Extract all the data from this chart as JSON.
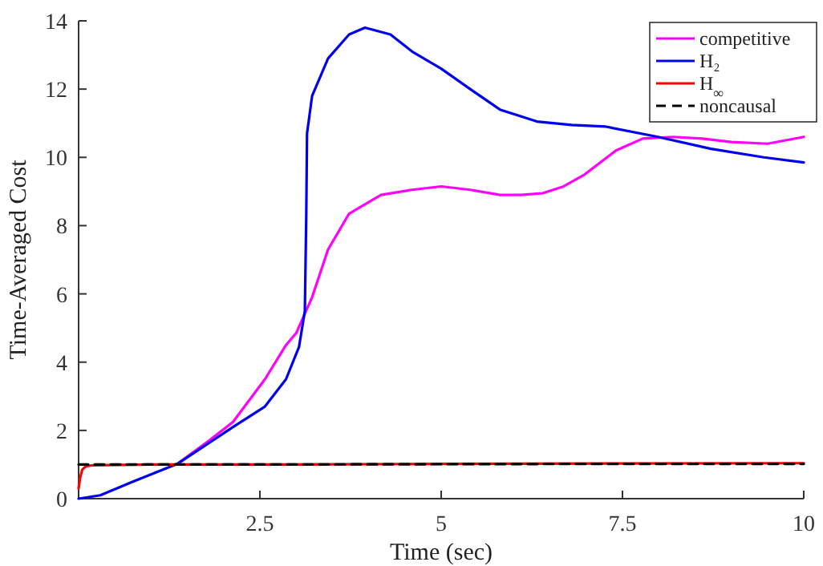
{
  "chart_data": {
    "type": "line",
    "xlabel": "Time (sec)",
    "ylabel": "Time-Averaged Cost",
    "xlim": [
      0,
      10
    ],
    "ylim": [
      0,
      14
    ],
    "xticks": [
      2.5,
      5,
      7.5,
      10
    ],
    "yticks": [
      0,
      2,
      4,
      6,
      8,
      10,
      12,
      14
    ],
    "legend": "top right",
    "grid": false,
    "series": [
      {
        "name": "competitive",
        "color": "#ff00ff",
        "x": [
          1.37,
          1.8,
          2.13,
          2.57,
          2.86,
          3.0,
          3.22,
          3.44,
          3.73,
          4.17,
          4.6,
          5,
          5.4,
          5.81,
          6.1,
          6.4,
          6.69,
          6.98,
          7.41,
          7.78,
          8.2,
          8.6,
          9.0,
          9.5,
          10
        ],
        "values": [
          1.03,
          1.7,
          2.25,
          3.5,
          4.5,
          4.85,
          5.9,
          7.3,
          8.35,
          8.9,
          9.05,
          9.15,
          9.05,
          8.9,
          8.9,
          8.95,
          9.15,
          9.5,
          10.2,
          10.55,
          10.6,
          10.55,
          10.45,
          10.4,
          10.6
        ]
      },
      {
        "name": "H₂",
        "color": "#0000ee",
        "x": [
          0,
          0.3,
          0.75,
          1.37,
          2.13,
          2.57,
          2.86,
          3.04,
          3.12,
          3.14,
          3.15,
          3.22,
          3.44,
          3.73,
          3.95,
          4.3,
          4.6,
          5,
          5.4,
          5.81,
          6.32,
          6.8,
          7.27,
          7.99,
          8.72,
          9.45,
          10
        ],
        "values": [
          0,
          0.1,
          0.5,
          1.03,
          2.1,
          2.7,
          3.5,
          4.45,
          5.5,
          8.4,
          10.7,
          11.8,
          12.9,
          13.6,
          13.8,
          13.6,
          13.1,
          12.6,
          12.0,
          11.4,
          11.05,
          10.95,
          10.9,
          10.6,
          10.25,
          10.0,
          9.85
        ]
      },
      {
        "name": "H$_{∞}$",
        "color": "#ff0000",
        "x": [
          0,
          0.02,
          0.05,
          0.1,
          0.2,
          1,
          3,
          5,
          7.5,
          10
        ],
        "values": [
          0.3,
          0.6,
          0.85,
          0.95,
          0.98,
          1.0,
          1.0,
          1.02,
          1.03,
          1.04
        ]
      },
      {
        "name": "noncausal",
        "color": "#000000",
        "line_style": "dashed",
        "x": [
          0,
          2.5,
          5,
          7.5,
          10
        ],
        "values": [
          1.0,
          1.0,
          1.01,
          1.02,
          1.02
        ]
      }
    ]
  }
}
